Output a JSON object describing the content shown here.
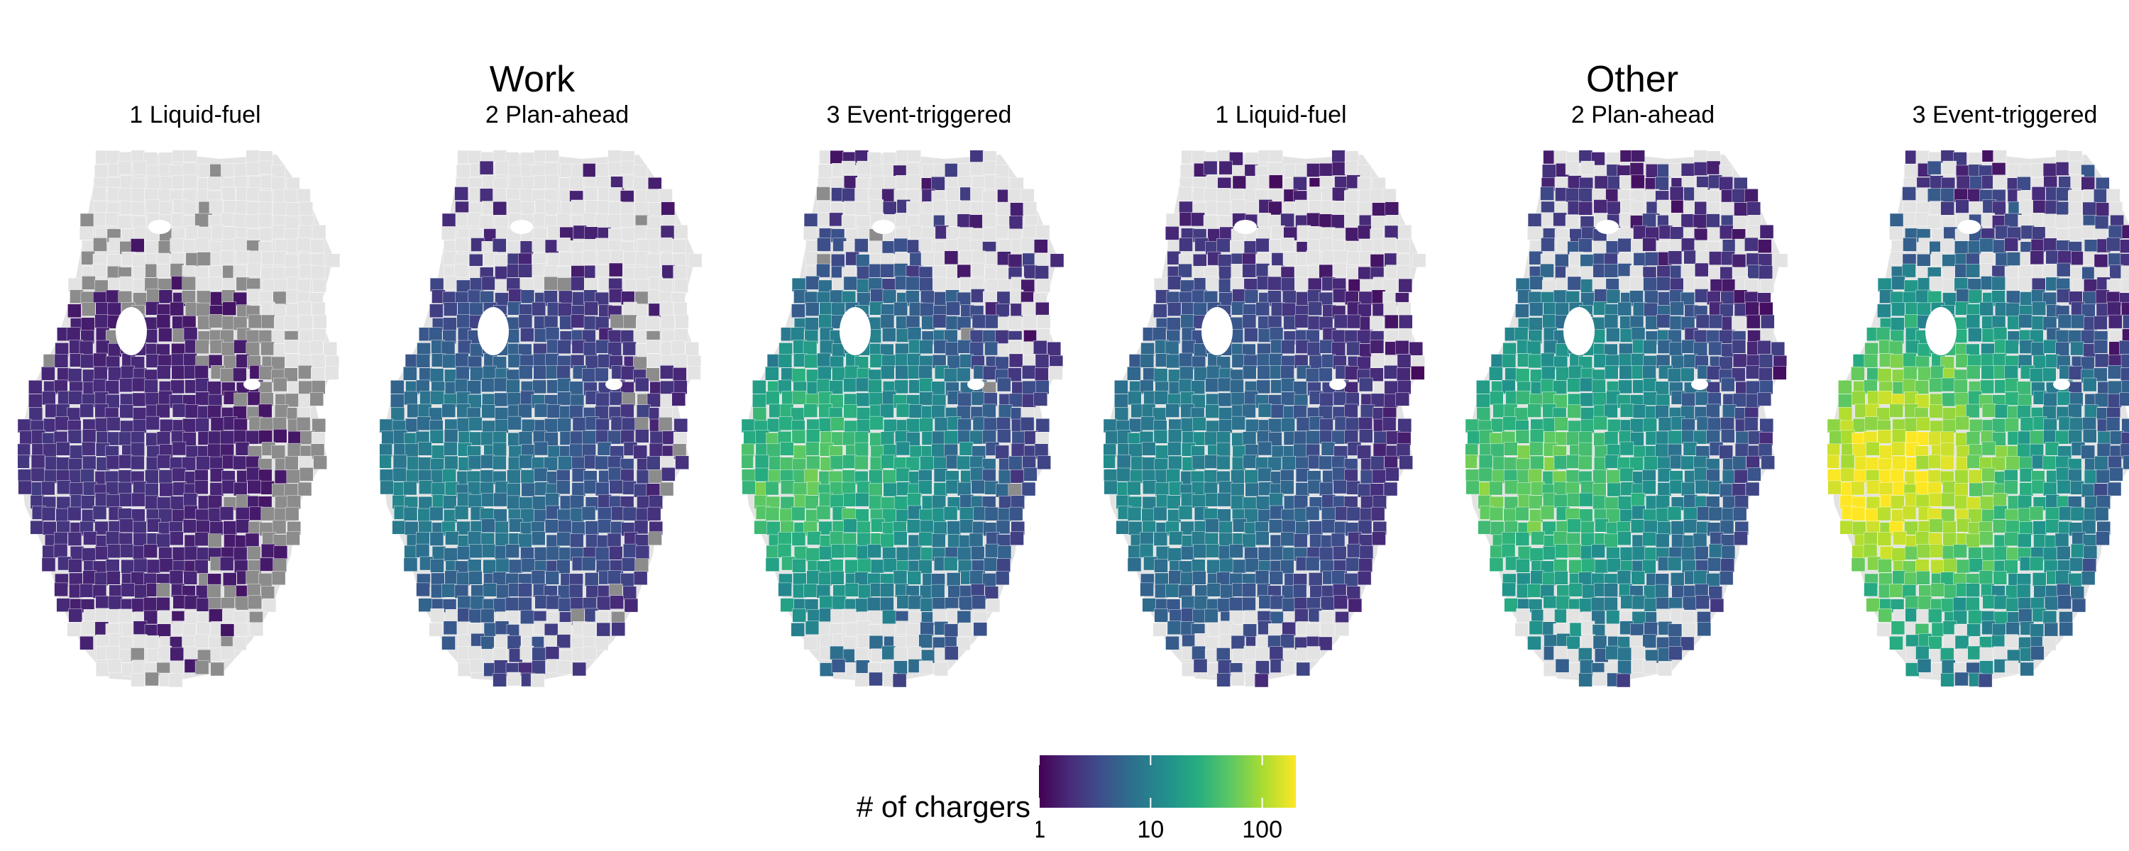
{
  "figure": {
    "group_titles": [
      "Work",
      "Other"
    ],
    "panels": [
      {
        "group": "Work",
        "title": "1 Liquid-fuel",
        "intensity": 0.1,
        "coverage": 0.4
      },
      {
        "group": "Work",
        "title": "2 Plan-ahead",
        "intensity": 0.28,
        "coverage": 0.62
      },
      {
        "group": "Work",
        "title": "3 Event-triggered",
        "intensity": 0.46,
        "coverage": 0.7
      },
      {
        "group": "Other",
        "title": "1 Liquid-fuel",
        "intensity": 0.3,
        "coverage": 0.78
      },
      {
        "group": "Other",
        "title": "2 Plan-ahead",
        "intensity": 0.48,
        "coverage": 0.86
      },
      {
        "group": "Other",
        "title": "3 Event-triggered",
        "intensity": 0.64,
        "coverage": 0.88
      }
    ]
  },
  "legend": {
    "title": "# of chargers",
    "scale": "log10",
    "range": [
      1,
      200
    ],
    "ticks": [
      {
        "value": 1,
        "label": "1"
      },
      {
        "value": 10,
        "label": "10"
      },
      {
        "value": 100,
        "label": "100"
      }
    ],
    "colors": [
      "#440154",
      "#472d7b",
      "#3b528b",
      "#2c728e",
      "#21918c",
      "#28ae80",
      "#5ec962",
      "#addc30",
      "#fde725"
    ]
  },
  "map_colors": {
    "no_data_region": "#e3e3e3",
    "zero_chargers": "#8c8c8c",
    "region_border": "#ffffff"
  }
}
